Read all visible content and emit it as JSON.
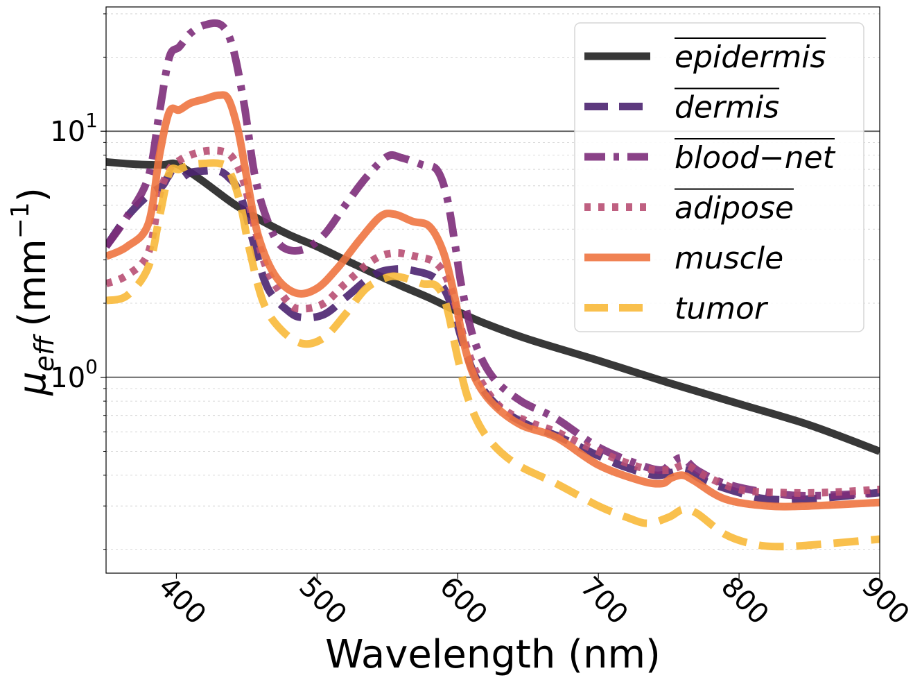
{
  "chart_data": {
    "type": "line",
    "xlabel": "Wavelength (nm)",
    "ylabel_symbol": "μ",
    "ylabel_subscript": "eff",
    "ylabel_unit_prefix": "(mm",
    "ylabel_unit_exponent": "−1",
    "ylabel_unit_suffix": ")",
    "xlim": [
      350,
      900
    ],
    "ylim": [
      0.16,
      32
    ],
    "yscale": "log",
    "x_ticks": [
      400,
      500,
      600,
      700,
      800,
      900
    ],
    "x_tick_labels": [
      "400",
      "500",
      "600",
      "700",
      "800",
      "900"
    ],
    "y_major_ticks": [
      {
        "value": 1,
        "base": "10",
        "exponent": "0"
      },
      {
        "value": 10,
        "base": "10",
        "exponent": "1"
      }
    ],
    "grid": "horizontal",
    "legend_position": "top-right",
    "series": [
      {
        "name": "epidermis",
        "overline": true,
        "color": "#222222",
        "dash": "solid",
        "x": [
          350,
          370,
          390,
          398,
          405,
          420,
          440,
          460,
          480,
          500,
          520,
          540,
          560,
          580,
          600,
          620,
          650,
          700,
          750,
          800,
          850,
          900
        ],
        "y": [
          7.5,
          7.35,
          7.3,
          7.4,
          7.1,
          6.2,
          5.1,
          4.35,
          3.8,
          3.4,
          3.0,
          2.65,
          2.35,
          2.1,
          1.85,
          1.65,
          1.43,
          1.17,
          0.95,
          0.78,
          0.64,
          0.5
        ]
      },
      {
        "name": "dermis",
        "overline": true,
        "color": "#4b2470",
        "dash": "dashed",
        "x": [
          350,
          365,
          380,
          390,
          395,
          402,
          410,
          420,
          430,
          437,
          445,
          455,
          465,
          480,
          490,
          505,
          520,
          540,
          555,
          570,
          585,
          595,
          605,
          615,
          630,
          650,
          670,
          700,
          720,
          740,
          752,
          762,
          775,
          800,
          820,
          850,
          900
        ],
        "y": [
          3.4,
          4.5,
          5.5,
          6.0,
          6.6,
          6.4,
          6.8,
          6.9,
          6.9,
          6.5,
          5.6,
          3.5,
          2.3,
          1.85,
          1.75,
          1.8,
          2.1,
          2.6,
          2.75,
          2.7,
          2.5,
          2.0,
          1.3,
          0.95,
          0.75,
          0.64,
          0.58,
          0.48,
          0.43,
          0.4,
          0.41,
          0.42,
          0.38,
          0.34,
          0.32,
          0.32,
          0.34
        ]
      },
      {
        "name": "blood−net",
        "overline": true,
        "color": "#7d2d7a",
        "dash": "dashdot",
        "x": [
          350,
          365,
          380,
          388,
          395,
          402,
          410,
          420,
          432,
          440,
          448,
          456,
          465,
          475,
          490,
          505,
          520,
          535,
          550,
          560,
          575,
          585,
          592,
          598,
          603,
          612,
          625,
          645,
          670,
          700,
          730,
          745,
          752,
          760,
          770,
          790,
          820,
          850,
          900
        ],
        "y": [
          3.4,
          4.5,
          6.5,
          12,
          20,
          22,
          25,
          27,
          27,
          22,
          13,
          6.5,
          4.3,
          3.4,
          3.3,
          3.8,
          5.0,
          6.5,
          7.9,
          7.8,
          7.3,
          7.0,
          5.5,
          3.5,
          2.3,
          1.4,
          1.0,
          0.8,
          0.68,
          0.52,
          0.44,
          0.42,
          0.45,
          0.47,
          0.42,
          0.37,
          0.34,
          0.33,
          0.34
        ]
      },
      {
        "name": "adipose",
        "overline": true,
        "color": "#b84f73",
        "dash": "dotted",
        "x": [
          350,
          365,
          380,
          388,
          395,
          402,
          410,
          420,
          432,
          440,
          448,
          456,
          465,
          480,
          490,
          505,
          520,
          540,
          555,
          570,
          585,
          595,
          605,
          615,
          630,
          650,
          670,
          700,
          730,
          750,
          762,
          775,
          800,
          830,
          860,
          900
        ],
        "y": [
          2.4,
          2.6,
          3.2,
          5.5,
          7.0,
          7.6,
          8.0,
          8.3,
          8.3,
          7.8,
          6.2,
          4.0,
          2.7,
          2.0,
          1.9,
          2.0,
          2.4,
          3.0,
          3.2,
          3.1,
          2.9,
          2.3,
          1.4,
          1.0,
          0.76,
          0.66,
          0.6,
          0.5,
          0.43,
          0.42,
          0.44,
          0.4,
          0.35,
          0.34,
          0.34,
          0.35
        ]
      },
      {
        "name": "muscle",
        "overline": false,
        "color": "#ee7440",
        "dash": "solid",
        "x": [
          350,
          365,
          380,
          388,
          395,
          402,
          410,
          420,
          430,
          437,
          444,
          450,
          458,
          470,
          485,
          500,
          515,
          530,
          545,
          555,
          568,
          580,
          590,
          598,
          604,
          612,
          625,
          645,
          670,
          700,
          730,
          745,
          752,
          760,
          768,
          790,
          820,
          850,
          900
        ],
        "y": [
          3.1,
          3.4,
          4.2,
          8.0,
          12,
          12.2,
          13,
          13.5,
          14,
          13.5,
          10,
          6.5,
          3.8,
          2.6,
          2.2,
          2.3,
          2.8,
          3.6,
          4.5,
          4.6,
          4.3,
          4.1,
          3.2,
          2.1,
          1.4,
          1.0,
          0.78,
          0.64,
          0.57,
          0.44,
          0.38,
          0.37,
          0.39,
          0.4,
          0.38,
          0.32,
          0.3,
          0.3,
          0.31
        ]
      },
      {
        "name": "tumor",
        "overline": false,
        "color": "#f8b93a",
        "dash": "dashed",
        "x": [
          350,
          365,
          380,
          388,
          395,
          402,
          410,
          420,
          430,
          437,
          445,
          452,
          462,
          475,
          490,
          505,
          520,
          535,
          550,
          560,
          575,
          585,
          592,
          600,
          608,
          620,
          640,
          670,
          700,
          720,
          735,
          750,
          760,
          770,
          790,
          810,
          830,
          860,
          900
        ],
        "y": [
          2.05,
          2.15,
          2.8,
          4.5,
          6.8,
          7.0,
          7.3,
          7.4,
          7.4,
          7.0,
          5.2,
          3.3,
          2.0,
          1.55,
          1.37,
          1.45,
          1.8,
          2.3,
          2.55,
          2.55,
          2.4,
          2.35,
          1.95,
          1.2,
          0.8,
          0.58,
          0.45,
          0.37,
          0.3,
          0.27,
          0.255,
          0.27,
          0.29,
          0.28,
          0.23,
          0.21,
          0.205,
          0.21,
          0.22
        ]
      }
    ]
  }
}
